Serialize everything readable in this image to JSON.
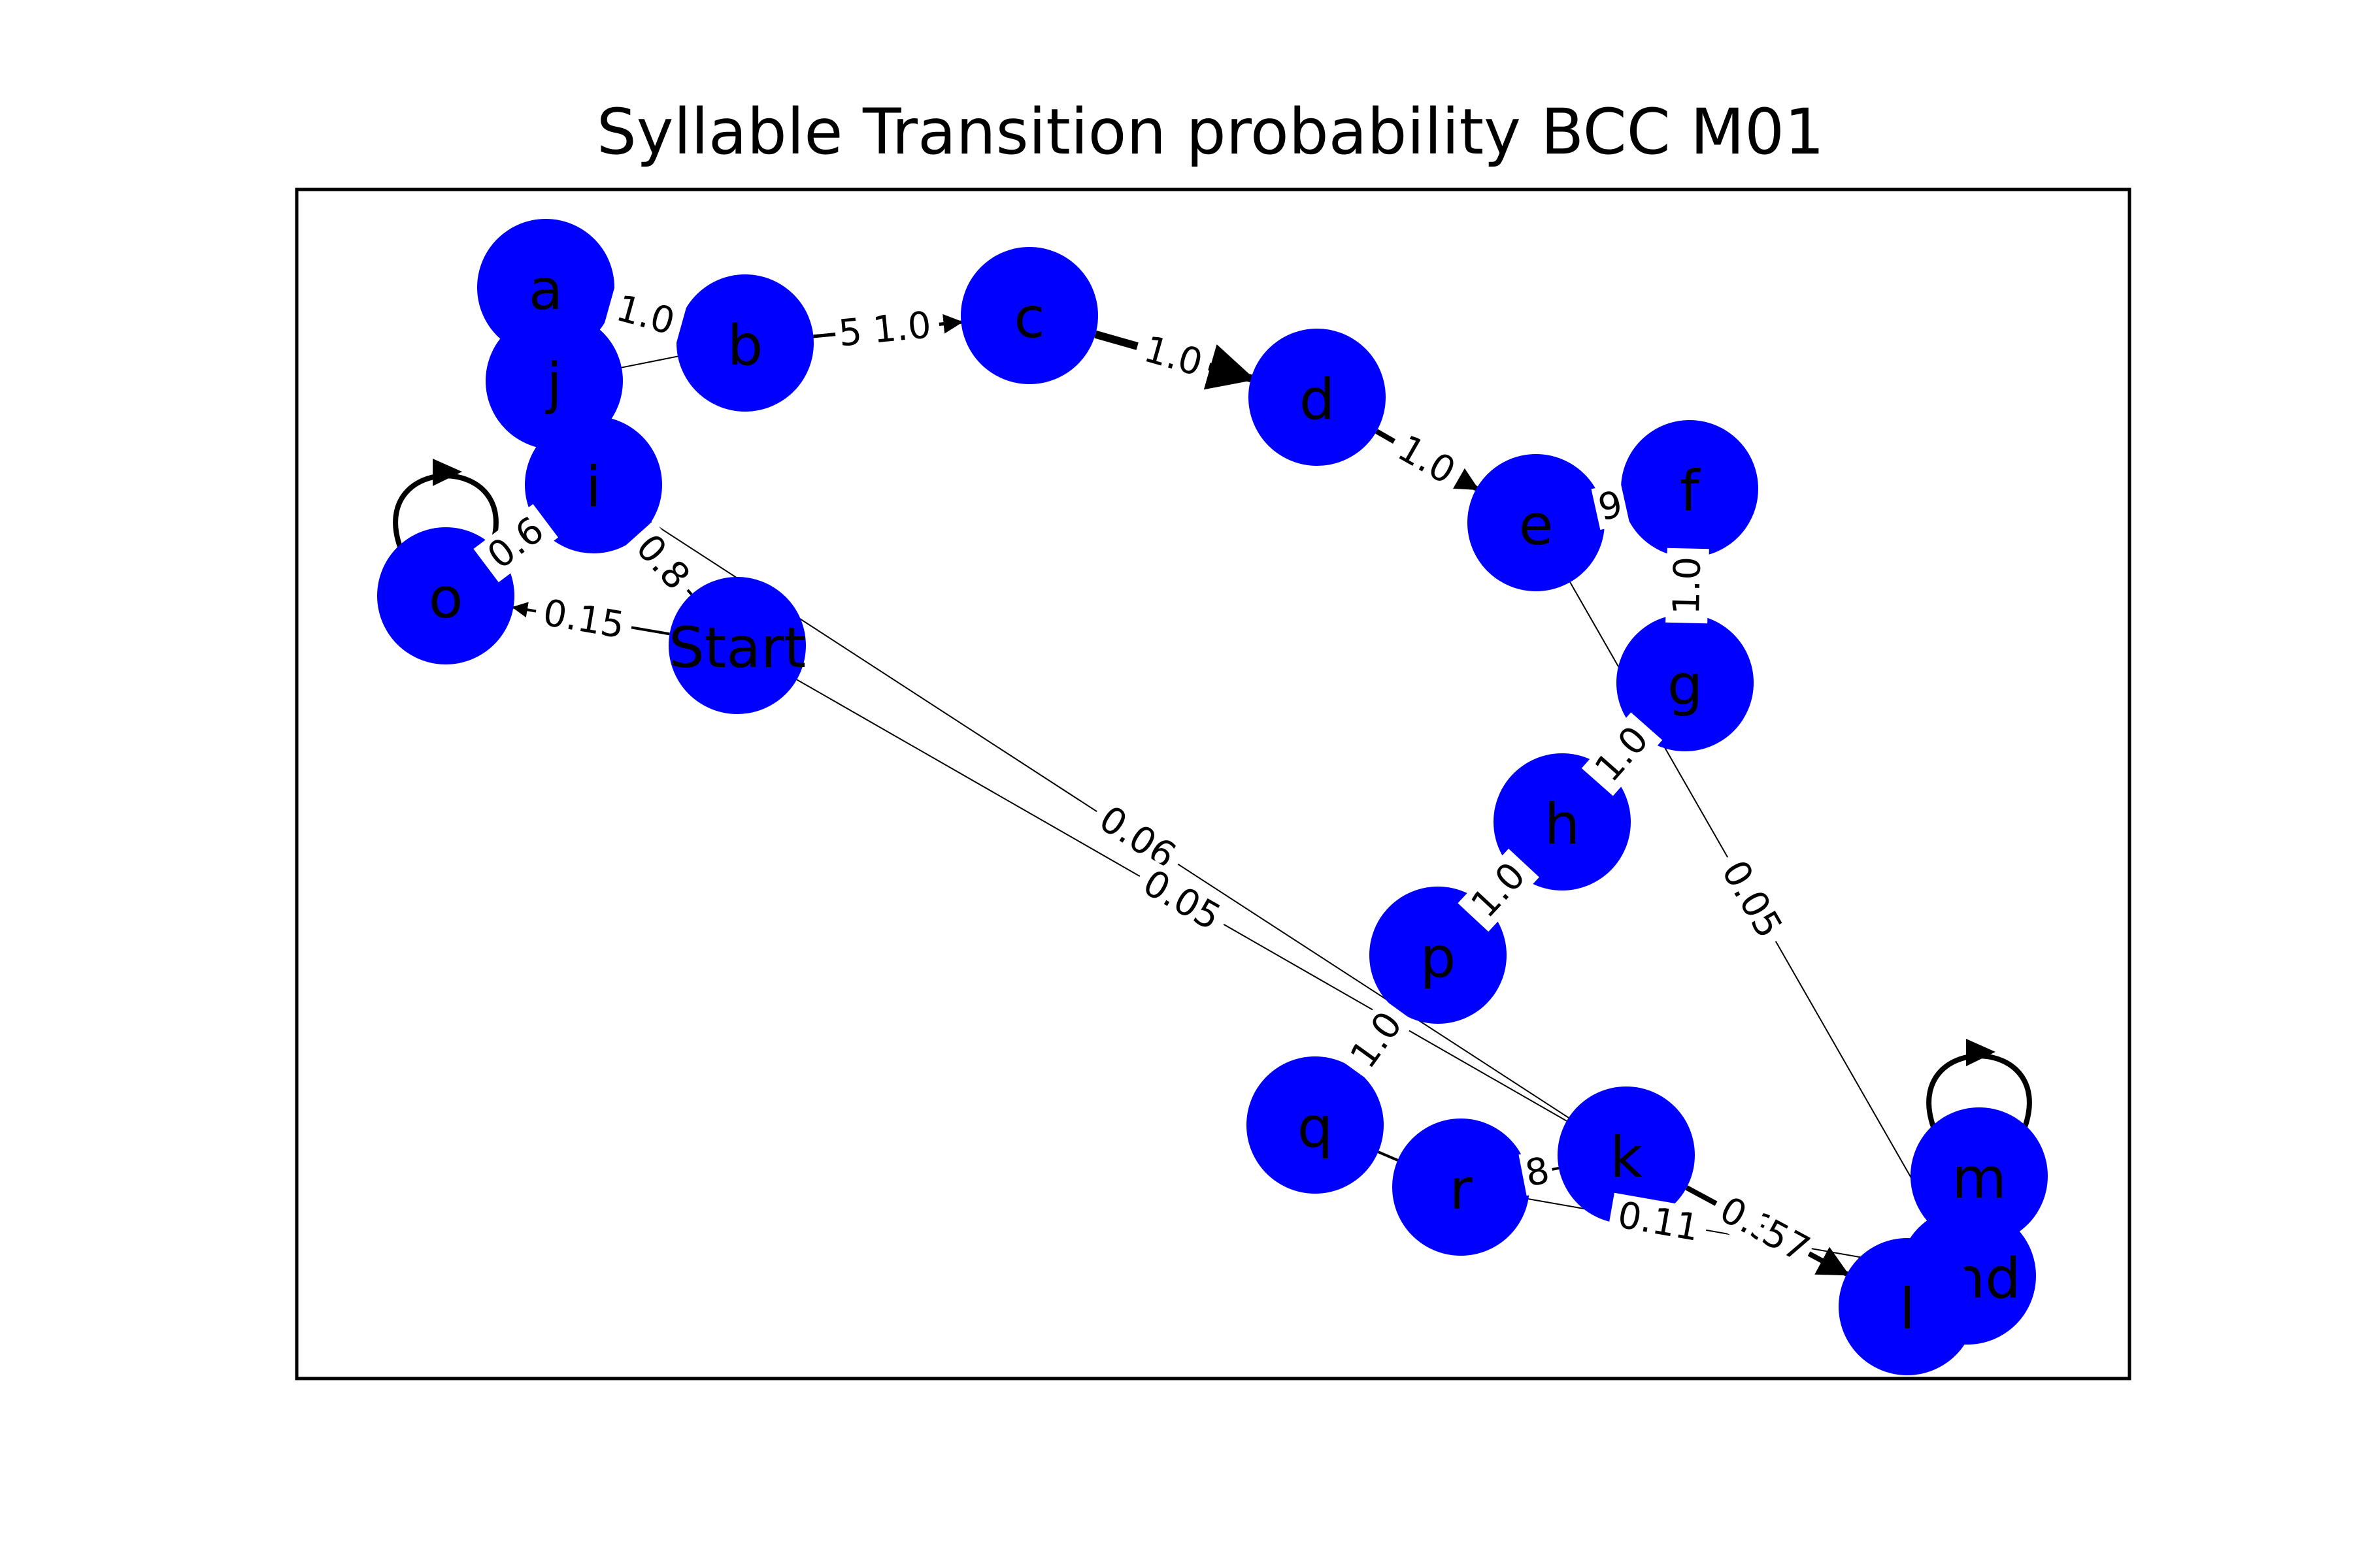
{
  "title": "Syllable Transition probability BCC M01",
  "colors": {
    "node_fill": "#0000ff",
    "edge": "#000000",
    "frame": "#000000",
    "background": "#ffffff"
  },
  "nodes": [
    {
      "id": "a",
      "label": "a"
    },
    {
      "id": "b",
      "label": "b"
    },
    {
      "id": "c",
      "label": "c"
    },
    {
      "id": "d",
      "label": "d"
    },
    {
      "id": "e",
      "label": "e"
    },
    {
      "id": "f",
      "label": "f"
    },
    {
      "id": "g",
      "label": "g"
    },
    {
      "id": "h",
      "label": "h"
    },
    {
      "id": "i",
      "label": "i"
    },
    {
      "id": "j",
      "label": "j"
    },
    {
      "id": "k",
      "label": "k"
    },
    {
      "id": "l",
      "label": "l"
    },
    {
      "id": "m",
      "label": "m"
    },
    {
      "id": "o",
      "label": "o"
    },
    {
      "id": "p",
      "label": "p"
    },
    {
      "id": "q",
      "label": "q"
    },
    {
      "id": "r",
      "label": "r"
    },
    {
      "id": "Start",
      "label": "Start"
    },
    {
      "id": "End",
      "label": "End"
    }
  ],
  "edges": [
    {
      "from": "a",
      "to": "b",
      "label": "1.0"
    },
    {
      "from": "j",
      "to": "b",
      "label": ""
    },
    {
      "from": "b",
      "to": "c",
      "label": "1.0"
    },
    {
      "from": "b",
      "to": "c",
      "label": "5"
    },
    {
      "from": "c",
      "to": "d",
      "label": "1.0"
    },
    {
      "from": "d",
      "to": "e",
      "label": "1.0"
    },
    {
      "from": "e",
      "to": "f",
      "label": "9"
    },
    {
      "from": "f",
      "to": "g",
      "label": "1.0"
    },
    {
      "from": "g",
      "to": "h",
      "label": "1.0"
    },
    {
      "from": "h",
      "to": "p",
      "label": "1.0"
    },
    {
      "from": "p",
      "to": "q",
      "label": "1.0"
    },
    {
      "from": "q",
      "to": "r",
      "label": ""
    },
    {
      "from": "r",
      "to": "k",
      "label": "8"
    },
    {
      "from": "i",
      "to": "o",
      "label": "0.6"
    },
    {
      "from": "i",
      "to": "Start",
      "label": "0.8"
    },
    {
      "from": "o",
      "to": "o",
      "label": ""
    },
    {
      "from": "Start",
      "to": "o",
      "label": "0.15"
    },
    {
      "from": "i",
      "to": "k",
      "label": "0.06"
    },
    {
      "from": "Start",
      "to": "k",
      "label": "0.05"
    },
    {
      "from": "e",
      "to": "End",
      "label": "0.05"
    },
    {
      "from": "k",
      "to": "l",
      "label": "0.38"
    },
    {
      "from": "k",
      "to": "l",
      "label": "57"
    },
    {
      "from": "r",
      "to": "End",
      "label": "0.11"
    },
    {
      "from": "m",
      "to": "m",
      "label": ""
    }
  ]
}
